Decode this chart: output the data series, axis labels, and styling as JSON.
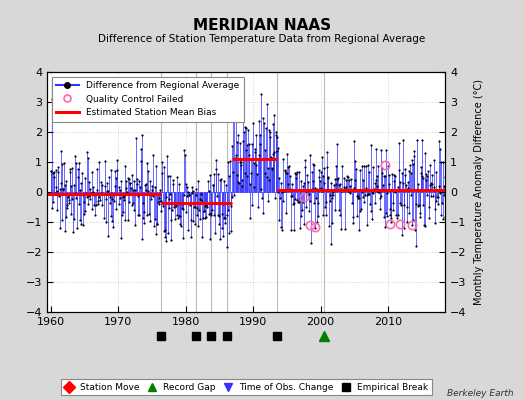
{
  "title": "MERIDIAN NAAS",
  "subtitle": "Difference of Station Temperature Data from Regional Average",
  "ylabel": "Monthly Temperature Anomaly Difference (°C)",
  "credit": "Berkeley Earth",
  "ylim": [
    -4,
    4
  ],
  "xlim": [
    1959.5,
    2018.5
  ],
  "yticks": [
    -4,
    -3,
    -2,
    -1,
    0,
    1,
    2,
    3,
    4
  ],
  "xticks": [
    1960,
    1970,
    1980,
    1990,
    2000,
    2010
  ],
  "bg_color": "#d8d8d8",
  "plot_bg_color": "#ffffff",
  "line_color": "#3333ff",
  "dot_color": "#000000",
  "bias_color": "#ff0000",
  "qc_color": "#ff69b4",
  "bias_segments": [
    {
      "x": [
        1959.5,
        1976.3
      ],
      "y": [
        -0.05,
        -0.05
      ]
    },
    {
      "x": [
        1976.3,
        1986.9
      ],
      "y": [
        -0.38,
        -0.38
      ]
    },
    {
      "x": [
        1986.9,
        1993.6
      ],
      "y": [
        1.1,
        1.1
      ]
    },
    {
      "x": [
        1993.6,
        2000.5
      ],
      "y": [
        0.08,
        0.08
      ]
    },
    {
      "x": [
        2000.5,
        2018.5
      ],
      "y": [
        0.08,
        0.08
      ]
    }
  ],
  "vertical_lines": [
    1976.3,
    1981.5,
    1983.8,
    1986.1,
    1993.6,
    2000.5
  ],
  "empirical_breaks": [
    1976.3,
    1981.5,
    1983.8,
    1986.1,
    1993.6
  ],
  "record_gaps": [
    2000.5
  ],
  "time_obs_changes": [],
  "station_moves": [],
  "qc_failed_years": [
    1997.5,
    1998.5,
    1999.2,
    2009.5,
    2010.3,
    2011.8,
    2013.5
  ],
  "qc_failed_vals": [
    -0.15,
    -1.1,
    -1.15,
    0.9,
    -1.05,
    -1.05,
    -1.1
  ],
  "seed": 137
}
